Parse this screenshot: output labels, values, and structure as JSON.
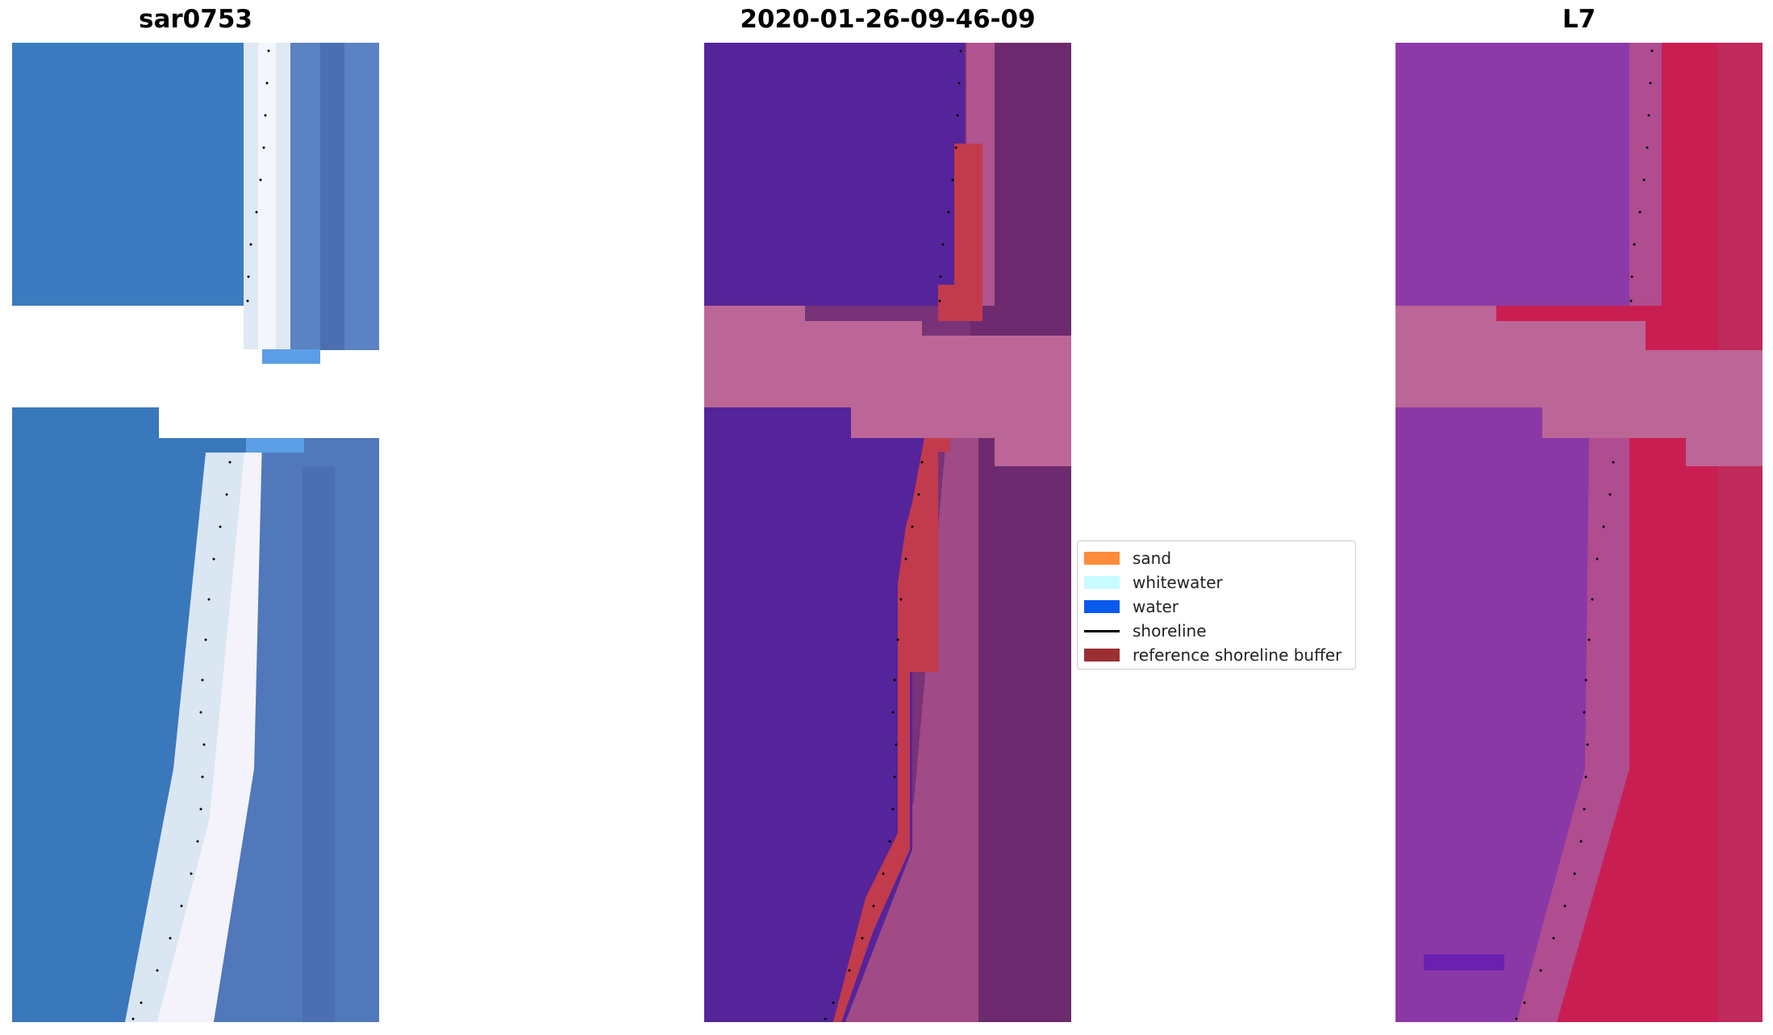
{
  "panels": [
    {
      "title": "sar0753"
    },
    {
      "title": "2020-01-26-09-46-09"
    },
    {
      "title": "L7"
    }
  ],
  "legend": {
    "items": [
      {
        "label": "sand",
        "color": "#ff8c3a",
        "kind": "patch"
      },
      {
        "label": "whitewater",
        "color": "#c8fbff",
        "kind": "patch"
      },
      {
        "label": "water",
        "color": "#0a59ee",
        "kind": "patch"
      },
      {
        "label": "shoreline",
        "color": "#000000",
        "kind": "line"
      },
      {
        "label": "reference shoreline buffer",
        "color": "#9b2f32",
        "kind": "patch"
      }
    ]
  },
  "colors": {
    "rgb_water": "#3a78be",
    "rgb_beach": "#e8eef8",
    "rgb_land": "#4a72b6",
    "class_water": "#54249a",
    "class_buffer": "#c13a4b",
    "class_gap": "#bb6696",
    "class_land": "#7a3278",
    "falsecolor_water": "#8a38a8",
    "falsecolor_land": "#cc1e50",
    "falsecolor_gap": "#bb6696"
  }
}
